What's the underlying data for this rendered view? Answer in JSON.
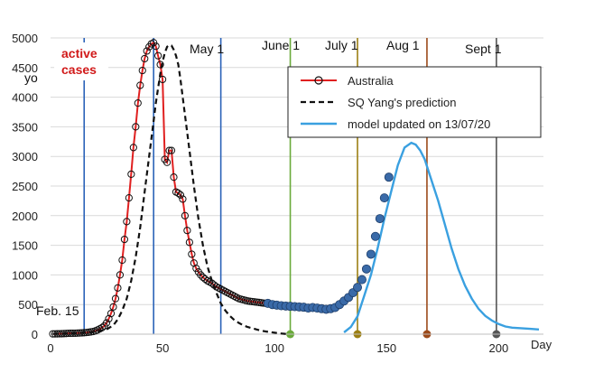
{
  "chart_data": {
    "type": "line",
    "xlabel": "Day",
    "ylabel": "",
    "xlim": [
      0,
      220
    ],
    "ylim": [
      0,
      5000
    ],
    "x_ticks": [
      0,
      50,
      100,
      150,
      200
    ],
    "y_ticks": [
      0,
      500,
      1000,
      1500,
      2000,
      2500,
      3000,
      3500,
      4000,
      4500,
      5000
    ],
    "x_tick_labels": [
      "0",
      "50",
      "100",
      "150",
      "200"
    ],
    "y_tick_labels": [
      "0",
      "500",
      "1000",
      "1500",
      "2000",
      "2500",
      "3000",
      "3500",
      "4000",
      "4500",
      "5000"
    ],
    "grid": "horizontal",
    "legend_position": "top-right",
    "label_box": {
      "lines": [
        "active",
        "cases"
      ]
    },
    "clipped_ylabel": "yo",
    "vlines": [
      {
        "x": 15,
        "color": "#2a62b8",
        "label": "Feb. 15",
        "marker": false
      },
      {
        "x": 46,
        "color": "#2a62b8",
        "label": "",
        "marker": false
      },
      {
        "x": 76,
        "color": "#2a62b8",
        "label": "May 1",
        "marker": false
      },
      {
        "x": 107,
        "color": "#6aaa3a",
        "label": "June 1",
        "marker": true
      },
      {
        "x": 137,
        "color": "#9c7f12",
        "label": "July 1",
        "marker": true
      },
      {
        "x": 168,
        "color": "#9c4a1a",
        "label": "Aug 1",
        "marker": true
      },
      {
        "x": 199,
        "color": "#555555",
        "label": "Sept 1",
        "marker": true
      }
    ],
    "series": [
      {
        "name": "Australia",
        "style": "red-line-open-circles",
        "color": "#e02020",
        "x": [
          1,
          2,
          3,
          4,
          5,
          6,
          7,
          8,
          9,
          10,
          11,
          12,
          13,
          14,
          15,
          16,
          17,
          18,
          19,
          20,
          21,
          22,
          23,
          24,
          25,
          26,
          27,
          28,
          29,
          30,
          31,
          32,
          33,
          34,
          35,
          36,
          37,
          38,
          39,
          40,
          41,
          42,
          43,
          44,
          45,
          46,
          47,
          48,
          49,
          50,
          51,
          52,
          53,
          54,
          55,
          56,
          57,
          58,
          59,
          60,
          61,
          62,
          63,
          64,
          65,
          66,
          67,
          68,
          69,
          70,
          71,
          72,
          73,
          74,
          75,
          76,
          77,
          78,
          79,
          80,
          81,
          82,
          83,
          84,
          85,
          86,
          87,
          88,
          89,
          90,
          91,
          92,
          93,
          94,
          95,
          96,
          97,
          98,
          99,
          100
        ],
        "values": [
          5,
          5,
          6,
          7,
          8,
          10,
          12,
          14,
          15,
          15,
          16,
          18,
          20,
          22,
          25,
          28,
          32,
          38,
          45,
          55,
          70,
          90,
          110,
          140,
          190,
          260,
          350,
          460,
          600,
          780,
          1000,
          1250,
          1600,
          1900,
          2300,
          2700,
          3150,
          3500,
          3900,
          4200,
          4450,
          4650,
          4780,
          4850,
          4900,
          4920,
          4860,
          4700,
          4550,
          4300,
          2950,
          2900,
          3100,
          3100,
          2650,
          2400,
          2380,
          2350,
          2280,
          2000,
          1750,
          1550,
          1350,
          1200,
          1110,
          1050,
          1000,
          960,
          930,
          900,
          880,
          860,
          830,
          800,
          780,
          760,
          740,
          720,
          700,
          680,
          660,
          640,
          620,
          600,
          590,
          580,
          570,
          560,
          555,
          550,
          545,
          540,
          535,
          530,
          525,
          520,
          515,
          510,
          505,
          500
        ]
      },
      {
        "name": "SQ Yang's prediction",
        "style": "black-dashed",
        "color": "#111111",
        "x": [
          1,
          5,
          10,
          15,
          20,
          25,
          28,
          30,
          32,
          34,
          36,
          38,
          40,
          42,
          44,
          46,
          47,
          48,
          49,
          50,
          51,
          52,
          53,
          54,
          55,
          56,
          57,
          58,
          59,
          60,
          62,
          64,
          66,
          68,
          70,
          72,
          74,
          76,
          78,
          80,
          82,
          84,
          86,
          88,
          90,
          92,
          94,
          96,
          98,
          100,
          102,
          104,
          106
        ],
        "values": [
          5,
          8,
          15,
          25,
          40,
          80,
          150,
          250,
          400,
          600,
          900,
          1300,
          1800,
          2400,
          3000,
          3600,
          3900,
          4150,
          4400,
          4600,
          4750,
          4850,
          4880,
          4870,
          4800,
          4700,
          4550,
          4300,
          4000,
          3700,
          3100,
          2500,
          1950,
          1500,
          1150,
          900,
          700,
          520,
          400,
          310,
          240,
          190,
          150,
          120,
          100,
          80,
          60,
          45,
          35,
          25,
          15,
          8,
          0
        ]
      },
      {
        "name": "model updated on 13/07/20",
        "style": "light-blue-line",
        "color": "#3aa0e0",
        "x": [
          131,
          134,
          137,
          140,
          143,
          146,
          149,
          152,
          155,
          158,
          161,
          163,
          165,
          167,
          170,
          173,
          176,
          179,
          182,
          185,
          188,
          191,
          194,
          197,
          200,
          203,
          206,
          210,
          214,
          218
        ],
        "values": [
          30,
          120,
          300,
          650,
          1000,
          1450,
          1950,
          2400,
          2850,
          3150,
          3230,
          3200,
          3100,
          2950,
          2600,
          2250,
          1850,
          1450,
          1100,
          820,
          600,
          430,
          310,
          230,
          170,
          130,
          110,
          100,
          90,
          80
        ]
      },
      {
        "name": "",
        "style": "dark-blue-dots",
        "color": "#3a6aa8",
        "x": [
          97,
          99,
          101,
          103,
          105,
          107,
          109,
          111,
          113,
          115,
          117,
          119,
          121,
          123,
          125,
          127,
          129,
          131,
          133,
          135,
          137,
          139,
          141,
          143,
          145,
          147,
          149,
          151
        ],
        "values": [
          520,
          500,
          490,
          480,
          475,
          470,
          465,
          460,
          455,
          440,
          450,
          440,
          430,
          420,
          430,
          450,
          500,
          560,
          620,
          700,
          790,
          920,
          1100,
          1350,
          1650,
          1950,
          2300,
          2650
        ]
      }
    ]
  }
}
